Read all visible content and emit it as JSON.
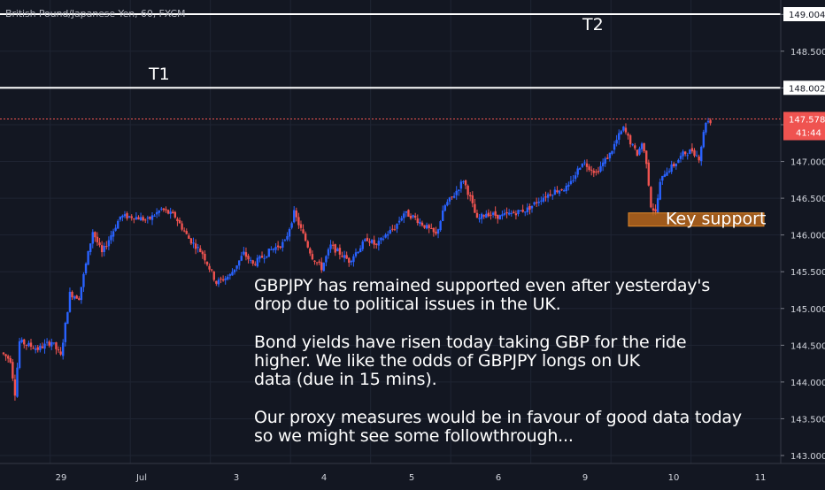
{
  "symbol_title": "British Pound/Japanese Yen, 60, FXCM",
  "colors": {
    "background": "#131722",
    "grid": "#1f2433",
    "up_candle": "#2962ff",
    "down_candle": "#ef5350",
    "level_line": "#ffffff",
    "current_price": "#ef5350",
    "support_zone": "#b8661b",
    "axis_text": "#d1d4dc"
  },
  "chart_data": {
    "type": "candlestick",
    "title": "British Pound/Japanese Yen, 60, FXCM",
    "x_ticks": [
      "29",
      "Jul",
      "3",
      "4",
      "5",
      "6",
      "9",
      "10",
      "11"
    ],
    "y_ticks": [
      143.0,
      143.5,
      144.0,
      144.5,
      145.0,
      145.5,
      146.0,
      146.5,
      147.0,
      147.5,
      148.0,
      148.5,
      149.0
    ],
    "ylim": [
      142.9,
      149.1
    ],
    "grid": true,
    "anchors": [
      [
        0,
        144.4
      ],
      [
        4,
        144.3
      ],
      [
        6,
        143.85
      ],
      [
        8,
        144.55
      ],
      [
        16,
        144.45
      ],
      [
        22,
        144.55
      ],
      [
        26,
        144.35
      ],
      [
        30,
        145.2
      ],
      [
        34,
        145.15
      ],
      [
        40,
        146.05
      ],
      [
        44,
        145.75
      ],
      [
        48,
        146.0
      ],
      [
        52,
        146.25
      ],
      [
        58,
        146.25
      ],
      [
        64,
        146.2
      ],
      [
        70,
        146.35
      ],
      [
        76,
        146.25
      ],
      [
        82,
        145.95
      ],
      [
        88,
        145.75
      ],
      [
        94,
        145.35
      ],
      [
        100,
        145.45
      ],
      [
        106,
        145.75
      ],
      [
        110,
        145.6
      ],
      [
        114,
        145.7
      ],
      [
        118,
        145.8
      ],
      [
        124,
        145.9
      ],
      [
        128,
        146.3
      ],
      [
        132,
        146.0
      ],
      [
        136,
        145.7
      ],
      [
        140,
        145.55
      ],
      [
        144,
        145.85
      ],
      [
        148,
        145.75
      ],
      [
        152,
        145.65
      ],
      [
        156,
        145.8
      ],
      [
        160,
        145.95
      ],
      [
        164,
        145.85
      ],
      [
        168,
        146.0
      ],
      [
        172,
        146.1
      ],
      [
        176,
        146.3
      ],
      [
        180,
        146.25
      ],
      [
        184,
        146.15
      ],
      [
        190,
        146.0
      ],
      [
        194,
        146.4
      ],
      [
        198,
        146.55
      ],
      [
        202,
        146.75
      ],
      [
        205,
        146.5
      ],
      [
        208,
        146.2
      ],
      [
        212,
        146.3
      ],
      [
        218,
        146.25
      ],
      [
        224,
        146.3
      ],
      [
        230,
        146.35
      ],
      [
        236,
        146.5
      ],
      [
        242,
        146.6
      ],
      [
        248,
        146.65
      ],
      [
        254,
        147.0
      ],
      [
        260,
        146.85
      ],
      [
        266,
        147.1
      ],
      [
        270,
        147.35
      ],
      [
        272,
        147.45
      ],
      [
        276,
        147.2
      ],
      [
        278,
        147.1
      ],
      [
        280,
        147.25
      ],
      [
        282,
        147.0
      ],
      [
        284,
        146.4
      ],
      [
        286,
        146.3
      ],
      [
        288,
        146.7
      ],
      [
        290,
        146.85
      ],
      [
        294,
        146.95
      ],
      [
        298,
        147.1
      ],
      [
        302,
        147.15
      ],
      [
        305,
        147.05
      ],
      [
        308,
        147.55
      ]
    ],
    "x_tick_positions": [
      [
        14,
        "29"
      ],
      [
        39,
        "Jul"
      ],
      [
        64,
        "3"
      ],
      [
        89,
        "4"
      ],
      [
        114,
        "5"
      ],
      [
        139,
        "6"
      ],
      [
        164,
        "9"
      ],
      [
        189,
        "10"
      ],
      [
        214,
        "11"
      ]
    ],
    "total_bars": 232,
    "current_price": 147.578,
    "levels": [
      {
        "label": "T1",
        "price": 148.002
      },
      {
        "label": "T2",
        "price": 149.004
      }
    ],
    "support_zone": {
      "label": "Key support",
      "from": 146.12,
      "to": 146.3,
      "start_bar": 200,
      "end_bar": 232
    }
  },
  "price_tags": {
    "t2": "149.004",
    "t1": "148.002",
    "current": "147.578",
    "countdown": "41:44"
  },
  "annotation": {
    "paragraphs": [
      [
        "GBPJPY has remained supported even after yesterday's",
        "drop due to political issues in the UK."
      ],
      [
        "Bond yields have risen today taking GBP for the ride",
        "higher. We like the odds of GBPJPY longs on UK",
        "data (due in 15 mins)."
      ],
      [
        "Our proxy measures would be in favour of good data today",
        "so we might see some followthrough..."
      ]
    ]
  }
}
